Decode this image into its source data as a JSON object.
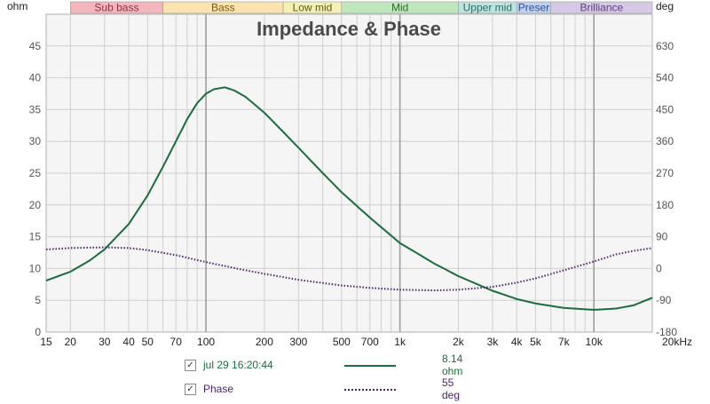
{
  "chart_data": {
    "type": "line",
    "title": "Impedance & Phase",
    "left_unit": "ohm",
    "right_unit": "deg",
    "x_scale": "log",
    "x_unit": "Hz",
    "xlim": [
      15,
      20000
    ],
    "ylim_left": [
      0,
      50
    ],
    "ylim_right": [
      -180,
      720
    ],
    "grid": true,
    "x_ticks": [
      {
        "value": 15,
        "label": "15"
      },
      {
        "value": 20,
        "label": "20"
      },
      {
        "value": 30,
        "label": "30"
      },
      {
        "value": 40,
        "label": "40"
      },
      {
        "value": 50,
        "label": "50"
      },
      {
        "value": 70,
        "label": "70"
      },
      {
        "value": 100,
        "label": "100"
      },
      {
        "value": 200,
        "label": "200"
      },
      {
        "value": 300,
        "label": "300"
      },
      {
        "value": 500,
        "label": "500"
      },
      {
        "value": 700,
        "label": "700"
      },
      {
        "value": 1000,
        "label": "1k"
      },
      {
        "value": 2000,
        "label": "2k"
      },
      {
        "value": 3000,
        "label": "3k"
      },
      {
        "value": 4000,
        "label": "4k"
      },
      {
        "value": 5000,
        "label": "5k"
      },
      {
        "value": 7000,
        "label": "7k"
      },
      {
        "value": 10000,
        "label": "10k"
      },
      {
        "value": 20000,
        "label": "20kHz"
      }
    ],
    "y_ticks_left": [
      "0",
      "5",
      "10",
      "15",
      "20",
      "25",
      "30",
      "35",
      "40",
      "45"
    ],
    "y_ticks_right": [
      "-180",
      "-90",
      "0",
      "90",
      "180",
      "270",
      "360",
      "450",
      "540",
      "630"
    ],
    "bands": [
      {
        "label": "Sub bass",
        "from": 20,
        "to": 60,
        "color": "#f4b6bd",
        "text_color": "#8a3340"
      },
      {
        "label": "Bass",
        "from": 60,
        "to": 250,
        "color": "#fbe3b0",
        "text_color": "#7a5a10"
      },
      {
        "label": "Low mid",
        "from": 250,
        "to": 500,
        "color": "#f4f1b8",
        "text_color": "#5f5a12"
      },
      {
        "label": "Mid",
        "from": 500,
        "to": 2000,
        "color": "#bfe7bd",
        "text_color": "#2e6b2c"
      },
      {
        "label": "Upper mid",
        "from": 2000,
        "to": 4000,
        "color": "#bfe3df",
        "text_color": "#2f6b66"
      },
      {
        "label": "Preser",
        "from": 4000,
        "to": 6000,
        "color": "#bfd0ee",
        "text_color": "#34508c"
      },
      {
        "label": "Brilliance",
        "from": 6000,
        "to": 20000,
        "color": "#d7c8e6",
        "text_color": "#5a3e7a"
      }
    ],
    "series": [
      {
        "name": "jul 29 16:20:44",
        "axis": "left",
        "color": "#1d6b3f",
        "style": "solid",
        "legend_value": "8.14 ohm",
        "x": [
          15,
          20,
          25,
          30,
          40,
          50,
          60,
          70,
          80,
          90,
          100,
          110,
          125,
          140,
          160,
          200,
          250,
          300,
          400,
          500,
          700,
          1000,
          1500,
          2000,
          3000,
          4000,
          5000,
          7000,
          10000,
          13000,
          16000,
          20000
        ],
        "y": [
          8.1,
          9.5,
          11.2,
          13.0,
          17.0,
          21.5,
          26.0,
          30.0,
          33.5,
          36.0,
          37.5,
          38.2,
          38.5,
          38.0,
          37.0,
          34.5,
          31.5,
          29.0,
          25.0,
          22.0,
          18.0,
          14.0,
          10.8,
          8.8,
          6.5,
          5.2,
          4.5,
          3.8,
          3.5,
          3.7,
          4.2,
          5.4
        ]
      },
      {
        "name": "Phase",
        "axis": "right",
        "color": "#4b2466",
        "style": "dotted",
        "legend_value": "55 deg",
        "x": [
          15,
          20,
          30,
          40,
          50,
          70,
          100,
          150,
          200,
          300,
          500,
          700,
          1000,
          1500,
          2000,
          3000,
          4000,
          5000,
          7000,
          10000,
          13000,
          16000,
          20000
        ],
        "y": [
          54,
          58,
          60,
          58,
          52,
          38,
          18,
          -2,
          -15,
          -32,
          -48,
          -55,
          -60,
          -62,
          -60,
          -52,
          -40,
          -28,
          -5,
          20,
          40,
          50,
          58
        ]
      }
    ]
  }
}
